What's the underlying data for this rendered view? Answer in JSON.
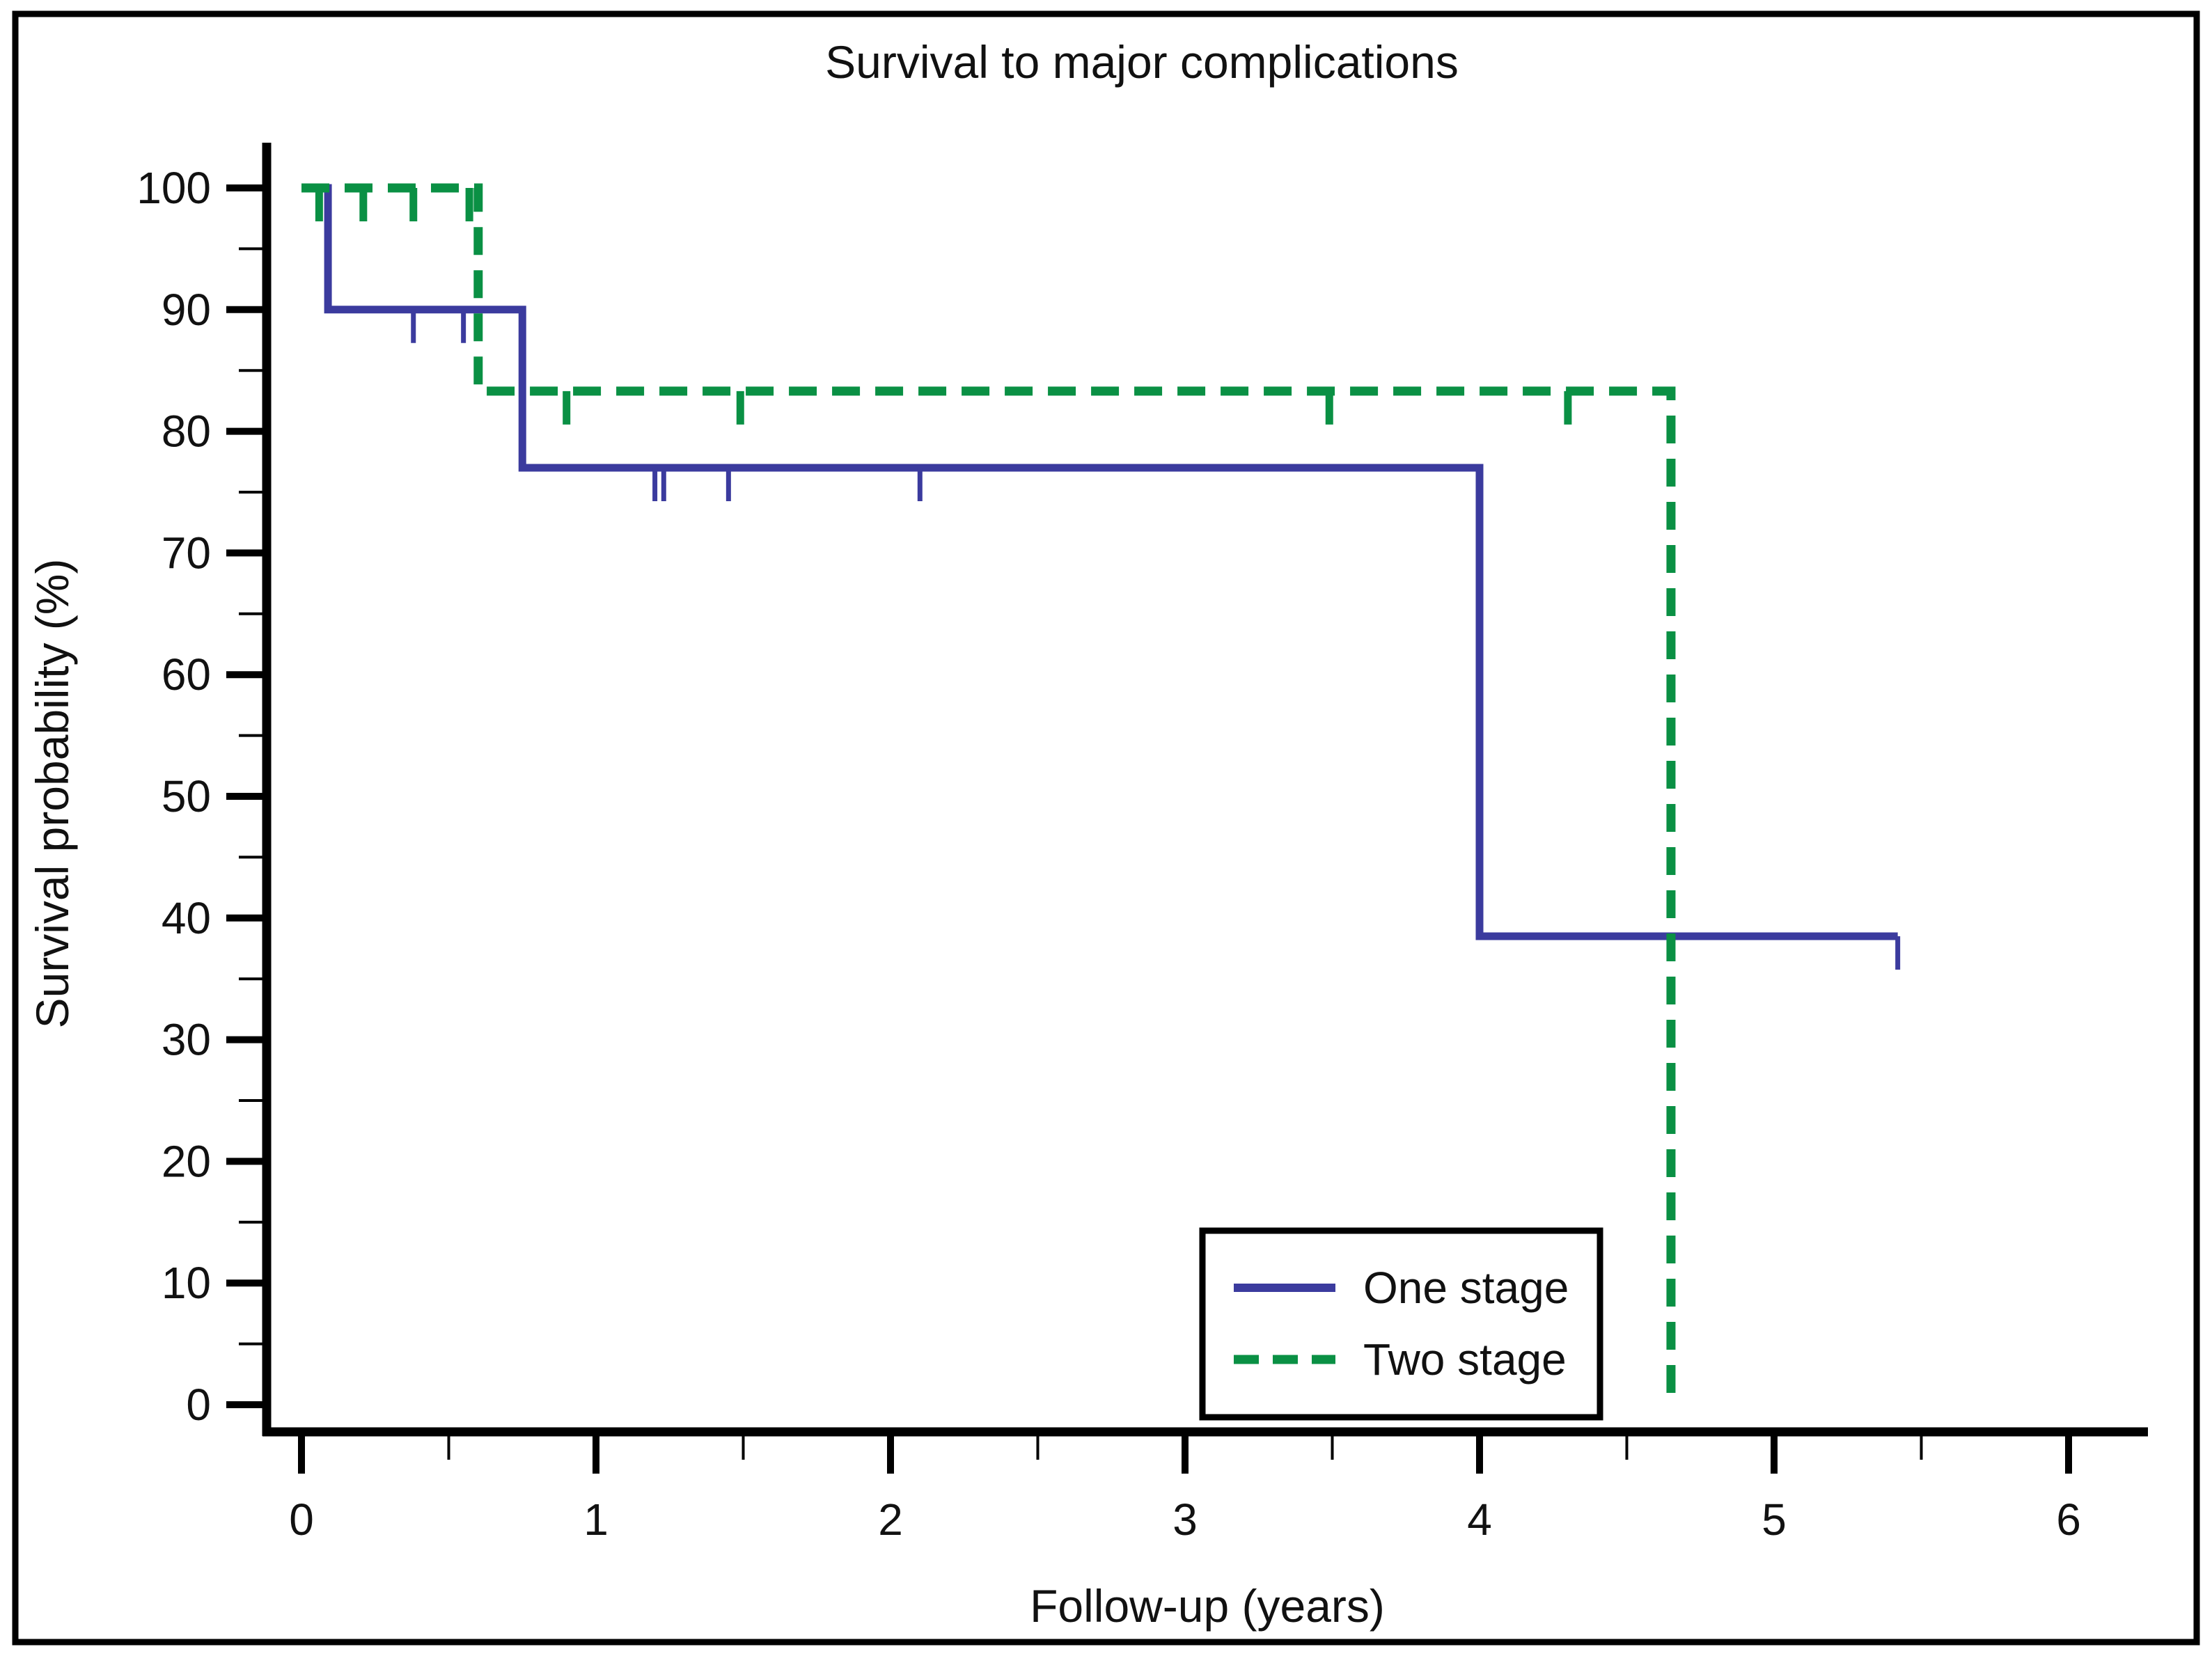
{
  "figure": {
    "background": "#ffffff",
    "border_color": "#000000"
  },
  "chart_data": {
    "type": "line",
    "subtype": "kaplan-meier-step",
    "title": "Survival to major complications",
    "xlabel": "Follow-up (years)",
    "ylabel": "Survival probability (%)",
    "grid": false,
    "legend_position": "lower-right-inside",
    "x_axis": {
      "range": [
        0,
        6.27
      ],
      "ticks": [
        0,
        1,
        2,
        3,
        4,
        5,
        6
      ],
      "minor_ticks": [
        0.5,
        1.5,
        2.5,
        3.5,
        4.5,
        5.5
      ]
    },
    "y_axis": {
      "range": [
        0,
        100
      ],
      "ticks": [
        0,
        10,
        20,
        30,
        40,
        50,
        60,
        70,
        80,
        90,
        100
      ],
      "minor_ticks": [
        5,
        15,
        25,
        35,
        45,
        55,
        65,
        75,
        85,
        95
      ]
    },
    "series": [
      {
        "name": "One stage",
        "color": "#3b3b9e",
        "line_style": "solid",
        "points": [
          [
            0,
            100
          ],
          [
            0.09,
            100
          ],
          [
            0.09,
            90
          ],
          [
            0.75,
            90
          ],
          [
            0.75,
            77
          ],
          [
            4.0,
            77
          ],
          [
            4.0,
            38.5
          ],
          [
            5.42,
            38.5
          ]
        ],
        "censor_marks": [
          [
            0.38,
            90
          ],
          [
            0.55,
            90
          ],
          [
            1.2,
            77
          ],
          [
            1.23,
            77
          ],
          [
            1.45,
            77
          ],
          [
            2.1,
            77
          ],
          [
            5.42,
            38.5
          ]
        ]
      },
      {
        "name": "Two stage",
        "color": "#0a9044",
        "line_style": "dashed",
        "points": [
          [
            0,
            100
          ],
          [
            0.6,
            100
          ],
          [
            0.6,
            83.3
          ],
          [
            4.65,
            83.3
          ],
          [
            4.65,
            0.8
          ]
        ],
        "censor_marks": [
          [
            0.06,
            100
          ],
          [
            0.21,
            100
          ],
          [
            0.38,
            100
          ],
          [
            0.57,
            100
          ],
          [
            0.9,
            83.3
          ],
          [
            1.49,
            83.3
          ],
          [
            3.49,
            83.3
          ],
          [
            4.3,
            83.3
          ]
        ]
      }
    ]
  }
}
